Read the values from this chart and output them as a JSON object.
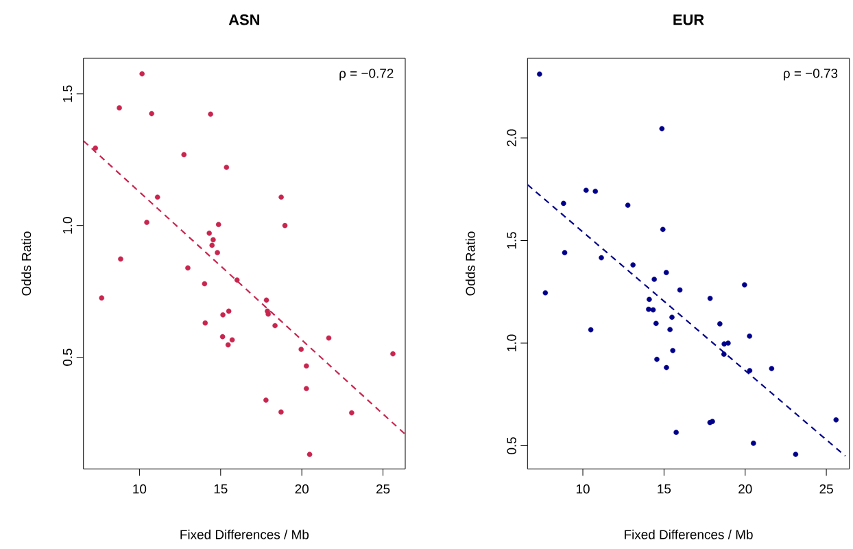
{
  "chart_data": [
    {
      "type": "scatter",
      "title": "ASN",
      "xlabel": "Fixed Differences / Mb",
      "ylabel": "Odds Ratio",
      "annotations": [
        "ρ = −0.72"
      ],
      "xlim": [
        6.55,
        26.37
      ],
      "ylim": [
        0.076,
        1.635
      ],
      "xticks": [
        10,
        15,
        20,
        25
      ],
      "yticks": [
        {
          "value": 0.5,
          "label": "0.5"
        },
        {
          "value": 1,
          "label": "1.0"
        },
        {
          "value": 1.5,
          "label": "1.5"
        }
      ],
      "series": [
        {
          "type": "scatter",
          "color": "#c8254f",
          "x": [
            10.16,
            8.76,
            10.75,
            14.38,
            7.29,
            12.74,
            15.36,
            11.11,
            18.73,
            10.45,
            14.87,
            18.96,
            14.3,
            14.54,
            14.47,
            14.8,
            8.84,
            12.98,
            16.01,
            14.01,
            7.67,
            17.82,
            17.88,
            17.93,
            14.05,
            15.14,
            15.5,
            18.35,
            15.12,
            15.71,
            15.46,
            21.66,
            19.96,
            25.61,
            20.28,
            20.28,
            17.79,
            18.72,
            23.07,
            20.48
          ],
          "values": [
            1.576,
            1.447,
            1.425,
            1.423,
            1.294,
            1.269,
            1.221,
            1.108,
            1.108,
            1.012,
            1.004,
            1.0,
            0.971,
            0.946,
            0.925,
            0.897,
            0.873,
            0.839,
            0.793,
            0.779,
            0.725,
            0.717,
            0.675,
            0.664,
            0.63,
            0.661,
            0.675,
            0.62,
            0.578,
            0.566,
            0.547,
            0.573,
            0.53,
            0.513,
            0.467,
            0.381,
            0.337,
            0.292,
            0.289,
            0.131
          ]
        },
        {
          "type": "line",
          "color": "#c8254f",
          "line_style": "dashed",
          "x": [
            6.56,
            26.36
          ],
          "values": [
            1.321,
            0.208
          ]
        }
      ]
    },
    {
      "type": "scatter",
      "title": "EUR",
      "xlabel": "Fixed Differences / Mb",
      "ylabel": "Odds Ratio",
      "annotations": [
        "ρ = −0.73"
      ],
      "xlim": [
        6.59,
        26.42
      ],
      "ylim": [
        0.387,
        2.388
      ],
      "xticks": [
        10,
        15,
        20,
        25
      ],
      "yticks": [
        {
          "value": 0.5,
          "label": "0.5"
        },
        {
          "value": 1,
          "label": "1.0"
        },
        {
          "value": 1.5,
          "label": "1.5"
        },
        {
          "value": 2,
          "label": "2.0"
        }
      ],
      "series": [
        {
          "type": "scatter",
          "color": "#00008b",
          "x": [
            7.33,
            14.87,
            10.2,
            10.77,
            8.81,
            12.77,
            14.93,
            8.88,
            11.14,
            13.09,
            15.14,
            14.4,
            7.69,
            15.98,
            19.96,
            14.09,
            17.84,
            14.05,
            14.33,
            15.49,
            14.51,
            18.44,
            15.37,
            10.49,
            20.27,
            18.71,
            18.95,
            18.69,
            15.54,
            14.56,
            15.15,
            20.28,
            21.63,
            17.83,
            17.98,
            25.6,
            15.75,
            20.51,
            23.11
          ],
          "values": [
            2.311,
            2.045,
            1.745,
            1.74,
            1.681,
            1.672,
            1.554,
            1.441,
            1.416,
            1.381,
            1.344,
            1.311,
            1.245,
            1.259,
            1.284,
            1.213,
            1.218,
            1.165,
            1.162,
            1.126,
            1.096,
            1.094,
            1.066,
            1.065,
            1.034,
            0.996,
            1.0,
            0.946,
            0.964,
            0.921,
            0.881,
            0.866,
            0.876,
            0.613,
            0.618,
            0.626,
            0.565,
            0.512,
            0.458
          ]
        },
        {
          "type": "line",
          "color": "#00008b",
          "line_style": "dashed",
          "x": [
            6.59,
            26.17
          ],
          "values": [
            1.772,
            0.45
          ]
        }
      ]
    }
  ]
}
